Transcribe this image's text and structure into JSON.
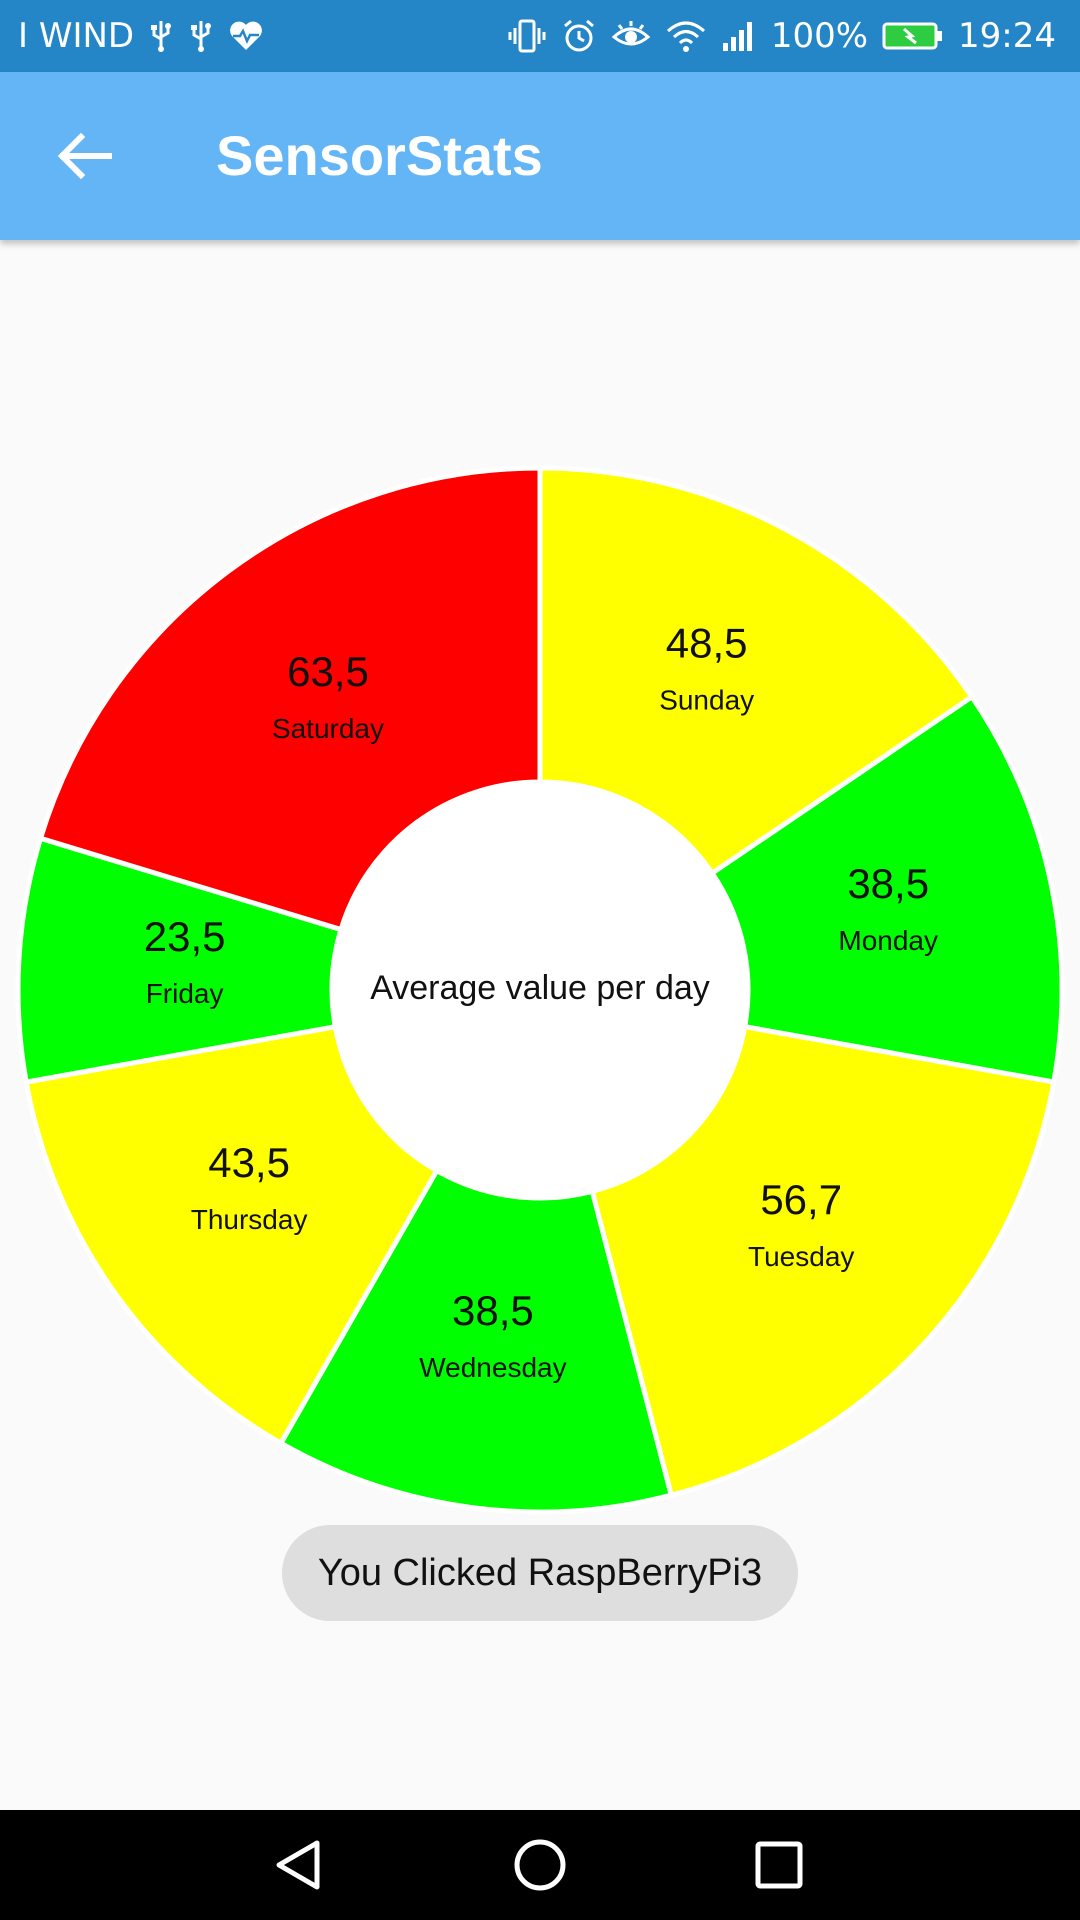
{
  "status_bar": {
    "carrier": "I WIND",
    "battery_percent": "100%",
    "time": "19:24",
    "left_icons": [
      "usb-icon",
      "usb-icon",
      "heart-rate-icon"
    ],
    "right_icons": [
      "vibrate-icon",
      "alarm-icon",
      "eye-icon",
      "wifi-icon",
      "signal-icon",
      "battery-charging-icon"
    ]
  },
  "app_bar": {
    "title": "SensorStats",
    "back_icon": "arrow-left-icon"
  },
  "chart_data": {
    "type": "pie",
    "center_label": "Average value per day",
    "slices": [
      {
        "label": "Sunday",
        "value": 48.5,
        "display": "48,5",
        "color": "#ffff00"
      },
      {
        "label": "Monday",
        "value": 38.5,
        "display": "38,5",
        "color": "#00ff00"
      },
      {
        "label": "Tuesday",
        "value": 56.7,
        "display": "56,7",
        "color": "#ffff00"
      },
      {
        "label": "Wednesday",
        "value": 38.5,
        "display": "38,5",
        "color": "#00ff00"
      },
      {
        "label": "Thursday",
        "value": 43.5,
        "display": "43,5",
        "color": "#ffff00"
      },
      {
        "label": "Friday",
        "value": 23.5,
        "display": "23,5",
        "color": "#00ff00"
      },
      {
        "label": "Saturday",
        "value": 63.5,
        "display": "63,5",
        "color": "#ff0000"
      }
    ]
  },
  "toast": {
    "text": "You Clicked RaspBerryPi3"
  },
  "nav_bar": {
    "icons": [
      "back-triangle-icon",
      "home-circle-icon",
      "recents-square-icon"
    ]
  }
}
